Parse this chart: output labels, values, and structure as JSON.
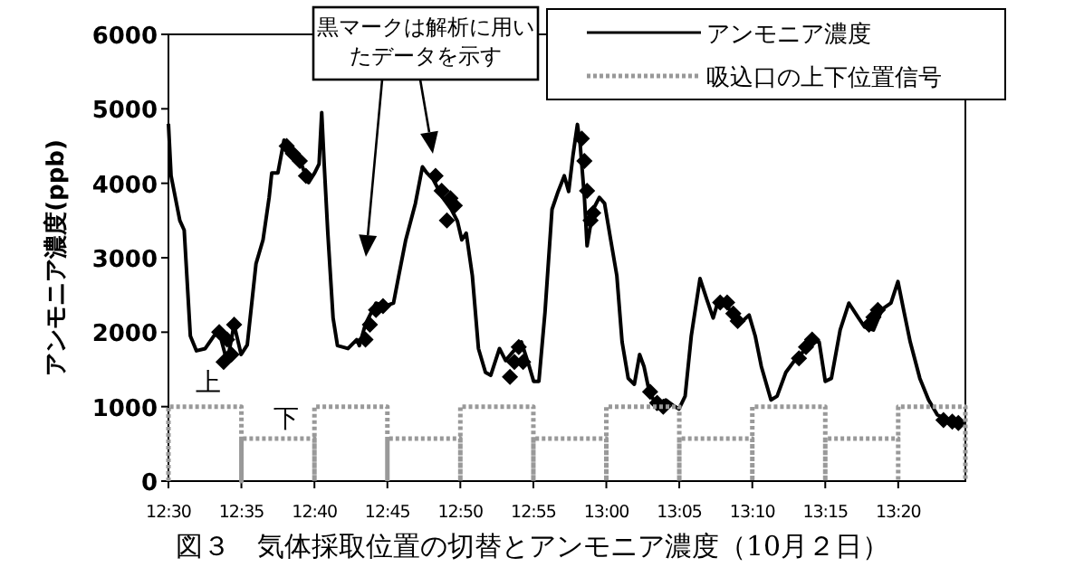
{
  "chart_data": {
    "type": "line",
    "title": "図３　気体採取位置の切替とアンモニア濃度（10月２日）",
    "ylabel": "アンモニア濃度(ppb)",
    "xlim": [
      12.5,
      13.41
    ],
    "xticks": [
      {
        "value": 12.5,
        "label": "12:30"
      },
      {
        "value": 12.5833,
        "label": "12:35"
      },
      {
        "value": 12.6667,
        "label": "12:40"
      },
      {
        "value": 12.75,
        "label": "12:45"
      },
      {
        "value": 12.8333,
        "label": "12:50"
      },
      {
        "value": 12.9167,
        "label": "12:55"
      },
      {
        "value": 13.0,
        "label": "13:00"
      },
      {
        "value": 13.0833,
        "label": "13:05"
      },
      {
        "value": 13.1667,
        "label": "13:10"
      },
      {
        "value": 13.25,
        "label": "13:15"
      },
      {
        "value": 13.3333,
        "label": "13:20"
      }
    ],
    "ylim": [
      0,
      6000
    ],
    "yticks": [
      0,
      1000,
      2000,
      3000,
      4000,
      5000,
      6000
    ],
    "legend": "top right",
    "series": [
      {
        "name": "アンモニア濃度",
        "color": "#000000",
        "line_style": "solid",
        "x": [
          12.5,
          12.503,
          12.513,
          12.518,
          12.525,
          12.532,
          12.542,
          12.552,
          12.558,
          12.567,
          12.575,
          12.583,
          12.59,
          12.6,
          12.608,
          12.615,
          12.618,
          12.625,
          12.632,
          12.642,
          12.653,
          12.66,
          12.667,
          12.672,
          12.675,
          12.678,
          12.682,
          12.688,
          12.693,
          12.705,
          12.715,
          12.718,
          12.725,
          12.737,
          12.747,
          12.757,
          12.763,
          12.771,
          12.782,
          12.79,
          12.795,
          12.802,
          12.813,
          12.823,
          12.83,
          12.835,
          12.84,
          12.847,
          12.854,
          12.862,
          12.868,
          12.878,
          12.885,
          12.903,
          12.912,
          12.917,
          12.923,
          12.93,
          12.938,
          12.945,
          12.952,
          12.957,
          12.962,
          12.967,
          12.97,
          12.975,
          12.978,
          12.985,
          12.992,
          12.998,
          13.005,
          13.012,
          13.018,
          13.025,
          13.032,
          13.038,
          13.043,
          13.048,
          13.058,
          13.068,
          13.077,
          13.083,
          13.09,
          13.097,
          13.107,
          13.115,
          13.122,
          13.128,
          13.138,
          13.152,
          13.163,
          13.17,
          13.177,
          13.188,
          13.195,
          13.205,
          13.215,
          13.225,
          13.237,
          13.243,
          13.25,
          13.257,
          13.267,
          13.277,
          13.288,
          13.295,
          13.305,
          13.315,
          13.325,
          13.333,
          13.34,
          13.347,
          13.358,
          13.368,
          13.378,
          13.392,
          13.405
        ],
        "values": [
          4800,
          4100,
          3500,
          3370,
          1950,
          1750,
          1780,
          1950,
          2000,
          1600,
          2100,
          1700,
          1830,
          2920,
          3240,
          3810,
          4140,
          4140,
          4580,
          4460,
          4220,
          4010,
          4140,
          4260,
          4950,
          4220,
          3330,
          2190,
          1820,
          1780,
          1900,
          1820,
          2110,
          2390,
          2350,
          2390,
          2760,
          3240,
          3730,
          4220,
          4140,
          4060,
          3810,
          3650,
          3490,
          3240,
          3330,
          2760,
          1780,
          1460,
          1420,
          1780,
          1620,
          1870,
          1540,
          1340,
          1340,
          2270,
          3650,
          3890,
          4100,
          3890,
          4380,
          4790,
          4540,
          3810,
          3160,
          3650,
          3810,
          3730,
          3240,
          2760,
          1870,
          1380,
          1300,
          1700,
          1540,
          1260,
          970,
          1090,
          1010,
          970,
          1140,
          1950,
          2720,
          2430,
          2190,
          2430,
          2350,
          2110,
          2230,
          1950,
          1540,
          1090,
          1140,
          1460,
          1620,
          1740,
          1870,
          1870,
          1340,
          1380,
          2030,
          2390,
          2190,
          2070,
          2030,
          2310,
          2390,
          2680,
          2270,
          1870,
          1380,
          1090,
          890,
          810,
          770
        ]
      },
      {
        "type": "scatter",
        "marker": "diamond",
        "color": "#000000",
        "x": [
          12.558,
          12.563,
          12.567,
          12.572,
          12.575,
          12.635,
          12.642,
          12.65,
          12.657,
          12.725,
          12.73,
          12.737,
          12.745,
          12.805,
          12.812,
          12.818,
          12.822,
          12.827,
          12.89,
          12.895,
          12.9,
          12.905,
          12.972,
          12.975,
          12.978,
          12.982,
          12.985,
          13.05,
          13.058,
          13.065,
          13.13,
          13.138,
          13.145,
          13.15,
          13.22,
          13.228,
          13.235,
          13.3,
          13.305,
          13.31,
          13.385,
          13.395,
          13.402
        ],
        "values": [
          2000,
          1600,
          1900,
          1700,
          2100,
          4500,
          4400,
          4300,
          4100,
          1900,
          2100,
          2300,
          2350,
          4100,
          3900,
          3500,
          3800,
          3700,
          1400,
          1600,
          1800,
          1600,
          4600,
          4300,
          3900,
          3500,
          3600,
          1200,
          1050,
          1000,
          2400,
          2400,
          2250,
          2150,
          1650,
          1800,
          1900,
          2100,
          2200,
          2300,
          820,
          800,
          780
        ]
      },
      {
        "name": "吸込口の上下位置信号",
        "color": "#999999",
        "line_style": "dotted",
        "x": [
          12.5,
          12.5,
          12.5833,
          12.5833,
          12.5833,
          12.6667,
          12.6667,
          12.6667,
          12.75,
          12.75,
          12.75,
          12.8333,
          12.8333,
          12.8333,
          12.9167,
          12.9167,
          12.9167,
          13.0,
          13.0,
          13.0,
          13.0833,
          13.0833,
          13.0833,
          13.1667,
          13.1667,
          13.1667,
          13.25,
          13.25,
          13.25,
          13.3333,
          13.3333,
          13.3333,
          13.41,
          13.41
        ],
        "values": [
          0,
          1000,
          1000,
          0,
          570,
          570,
          0,
          1000,
          1000,
          0,
          570,
          570,
          0,
          1000,
          1000,
          0,
          570,
          570,
          0,
          1000,
          1000,
          0,
          570,
          570,
          0,
          1000,
          1000,
          0,
          570,
          570,
          0,
          1000,
          1000,
          0
        ]
      }
    ],
    "annotations": [
      "黒マークは解析に用いたデータを示す",
      "上",
      "下"
    ]
  }
}
